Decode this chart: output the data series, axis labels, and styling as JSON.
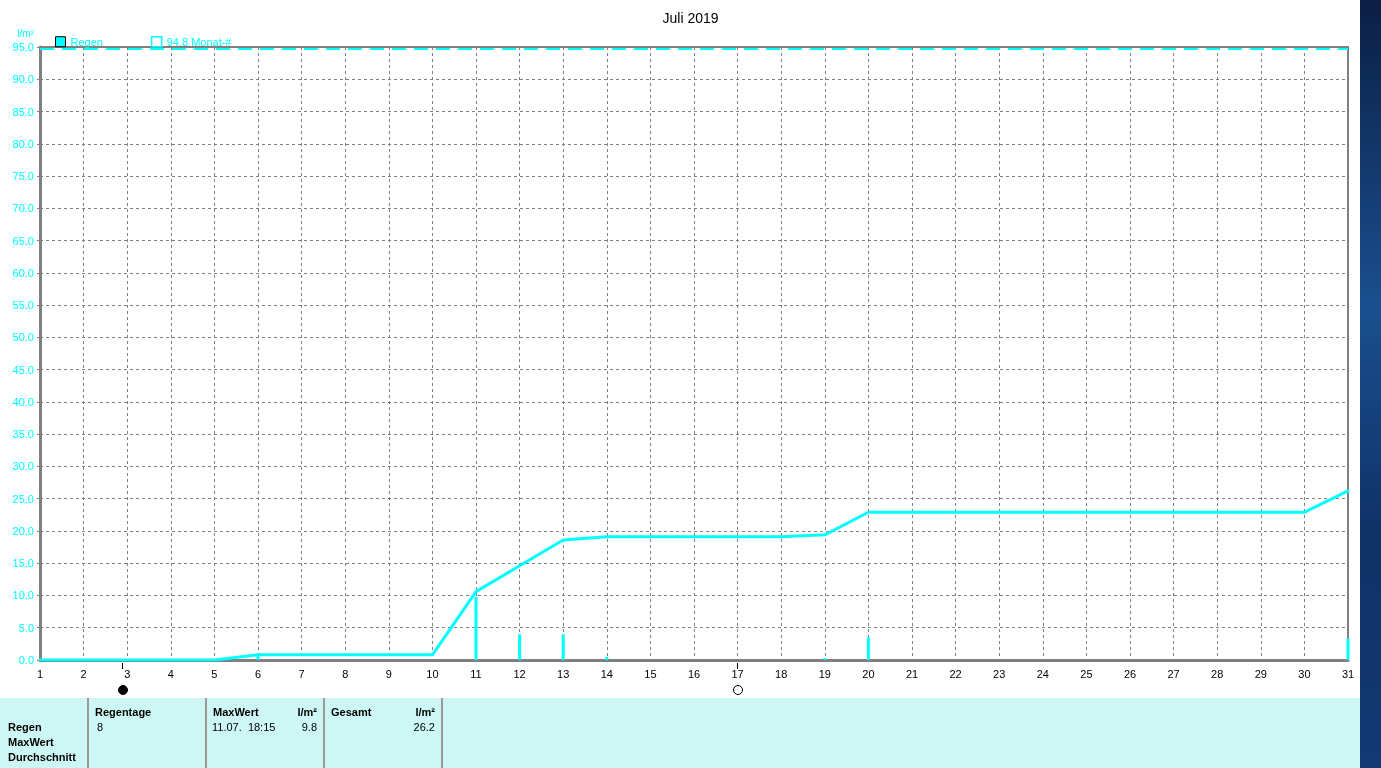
{
  "chart_data": {
    "type": "bar",
    "title": "Juli 2019",
    "ylabel": "l/m²",
    "x": [
      1,
      2,
      3,
      4,
      5,
      6,
      7,
      8,
      9,
      10,
      11,
      12,
      13,
      14,
      15,
      16,
      17,
      18,
      19,
      20,
      21,
      22,
      23,
      24,
      25,
      26,
      27,
      28,
      29,
      30,
      31
    ],
    "xlim": [
      1,
      31
    ],
    "xticks": [
      1,
      2,
      3,
      4,
      5,
      6,
      7,
      8,
      9,
      10,
      11,
      12,
      13,
      14,
      15,
      16,
      17,
      18,
      19,
      20,
      21,
      22,
      23,
      24,
      25,
      26,
      27,
      28,
      29,
      30,
      31
    ],
    "ylim": [
      0,
      95
    ],
    "yticks": [
      {
        "value": 0,
        "label": "0.0"
      },
      {
        "value": 5,
        "label": "5.0"
      },
      {
        "value": 10,
        "label": "10.0"
      },
      {
        "value": 15,
        "label": "15.0"
      },
      {
        "value": 20,
        "label": "20.0"
      },
      {
        "value": 25,
        "label": "25.0"
      },
      {
        "value": 30,
        "label": "30.0"
      },
      {
        "value": 35,
        "label": "35.0"
      },
      {
        "value": 40,
        "label": "40.0"
      },
      {
        "value": 45,
        "label": "45.0"
      },
      {
        "value": 50,
        "label": "50.0"
      },
      {
        "value": 55,
        "label": "55.0"
      },
      {
        "value": 60,
        "label": "60.0"
      },
      {
        "value": 65,
        "label": "65.0"
      },
      {
        "value": 70,
        "label": "70.0"
      },
      {
        "value": 75,
        "label": "75.0"
      },
      {
        "value": 80,
        "label": "80.0"
      },
      {
        "value": 85,
        "label": "85.0"
      },
      {
        "value": 90,
        "label": "90.0"
      },
      {
        "value": 95,
        "label": "95.0"
      }
    ],
    "grid": true,
    "legend": "top left",
    "marker": "none",
    "line_style": "solid",
    "series": [
      {
        "name": "Regen",
        "color": "#00ffff",
        "x": [
          6,
          11,
          12,
          13,
          14,
          19,
          20,
          31
        ],
        "values": [
          0.8,
          9.8,
          4.0,
          4.0,
          0.5,
          0.3,
          3.5,
          3.3
        ]
      },
      {
        "type": "line",
        "color": "#00ffff",
        "values": [
          0,
          0,
          0,
          0,
          0,
          0.8,
          0.8,
          0.8,
          0.8,
          0.8,
          10.6,
          14.6,
          18.6,
          19.1,
          19.1,
          19.1,
          19.1,
          19.1,
          19.4,
          22.9,
          22.9,
          22.9,
          22.9,
          22.9,
          22.9,
          22.9,
          22.9,
          22.9,
          22.9,
          22.9,
          26.2
        ]
      }
    ],
    "ref_lines": [
      {
        "axis": "y",
        "value": 94.8,
        "label": "94.8 Monat-#",
        "color": "#00ffff",
        "line_style": "dashed"
      }
    ],
    "annotations": [
      "Regentage",
      "MaxWert",
      "l/m²",
      "Gesamt",
      "l/m²",
      "Regen",
      "8",
      "11.07.  18:15",
      "9.8",
      "26.2",
      "MaxWert",
      "Durchschnitt"
    ]
  }
}
